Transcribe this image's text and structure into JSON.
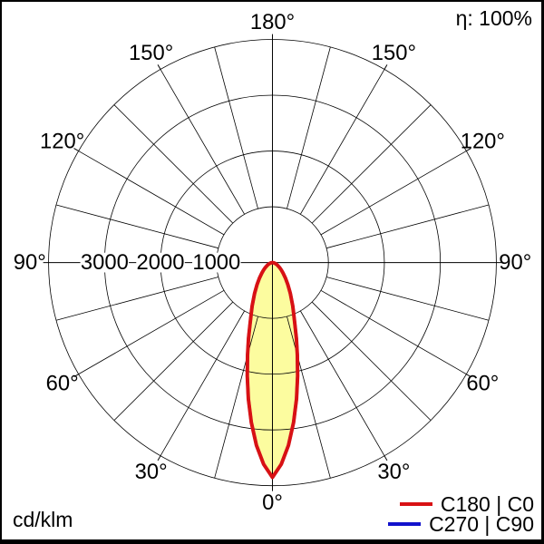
{
  "chart_data": {
    "type": "polar_intensity_distribution",
    "unit": "cd/klm",
    "efficiency": "η: 100%",
    "radial_axis": {
      "min": 0,
      "max": 4000,
      "step": 1000,
      "ticks": [
        {
          "value": 3000,
          "label": "3000"
        },
        {
          "value": 2000,
          "label": "2000"
        },
        {
          "value": 1000,
          "label": "1000"
        }
      ]
    },
    "angle_axis": {
      "spoke_step_deg": 15,
      "tick_step_deg": 30,
      "labels": [
        {
          "deg": 0,
          "label": "0°"
        },
        {
          "deg": 30,
          "label": "30°"
        },
        {
          "deg": 60,
          "label": "60°"
        },
        {
          "deg": 90,
          "label": "90°"
        },
        {
          "deg": 120,
          "label": "120°"
        },
        {
          "deg": 150,
          "label": "150°"
        },
        {
          "deg": 180,
          "label": "180°"
        }
      ]
    },
    "series": [
      {
        "name": "C180 | C0",
        "color": "#d81114",
        "fill": "#fcfc9f",
        "gamma_deg": [
          0,
          2.5,
          5,
          7.5,
          10,
          12.5,
          15,
          17.5,
          20,
          22.5,
          25,
          30,
          35,
          40,
          45,
          50,
          55,
          60,
          65,
          70,
          75,
          80,
          85,
          90
        ],
        "values": [
          3850,
          3620,
          3290,
          2890,
          2480,
          2080,
          1720,
          1420,
          1170,
          990,
          860,
          640,
          480,
          360,
          270,
          205,
          155,
          115,
          85,
          60,
          40,
          25,
          12,
          0
        ]
      },
      {
        "name": "C270 | C90",
        "color": "#1212cc",
        "fill": "none",
        "gamma_deg": [
          0,
          2.5,
          5,
          7.5,
          10,
          12.5,
          15,
          17.5,
          20,
          22.5,
          25,
          30,
          35,
          40,
          45,
          50,
          55,
          60,
          65,
          70,
          75,
          80,
          85,
          90
        ],
        "values": [
          3850,
          3620,
          3290,
          2890,
          2480,
          2080,
          1720,
          1420,
          1170,
          990,
          860,
          640,
          480,
          360,
          270,
          205,
          155,
          115,
          85,
          60,
          40,
          25,
          12,
          0
        ]
      }
    ],
    "legend": [
      {
        "label": "C180 | C0",
        "color": "#d81114"
      },
      {
        "label": "C270 | C90",
        "color": "#1212cc"
      }
    ],
    "grid_color": "#000000",
    "background": "#ffffff"
  }
}
